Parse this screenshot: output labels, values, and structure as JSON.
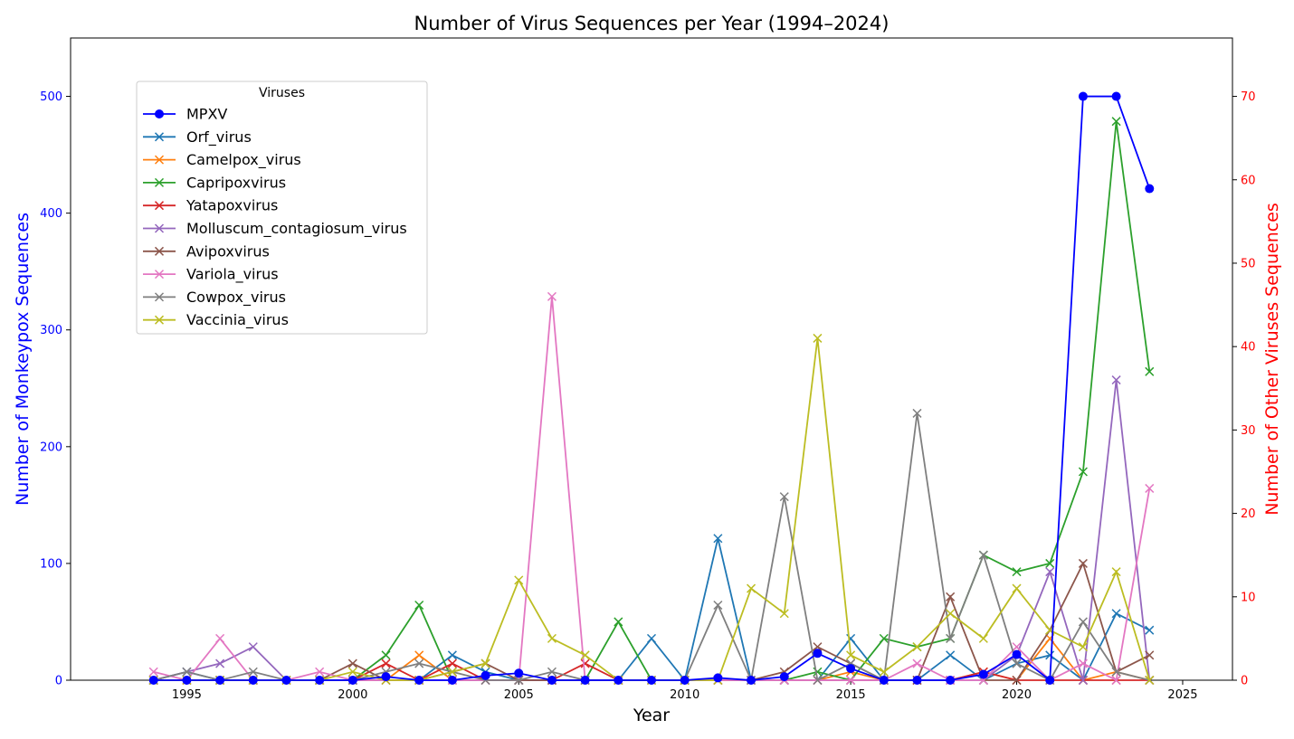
{
  "chart_data": {
    "type": "line",
    "title": "Number of Virus Sequences per Year (1994–2024)",
    "xlabel": "Year",
    "ylabel_left": "Number of Monkeypox Sequences",
    "ylabel_right": "Number of Other Viruses Sequences",
    "xlim": [
      1991.5,
      2026.5
    ],
    "ylim_left": [
      0,
      550
    ],
    "ylim_right": [
      0,
      77
    ],
    "x_ticks": [
      1995,
      2000,
      2005,
      2010,
      2015,
      2020,
      2025
    ],
    "y_ticks_left": [
      0,
      100,
      200,
      300,
      400,
      500
    ],
    "y_ticks_right": [
      0,
      10,
      20,
      30,
      40,
      50,
      60,
      70
    ],
    "grid": false,
    "legend_title": "Viruses",
    "legend_position": "top-left",
    "x": [
      1994,
      1995,
      1996,
      1997,
      1998,
      1999,
      2000,
      2001,
      2002,
      2003,
      2004,
      2005,
      2006,
      2007,
      2008,
      2009,
      2010,
      2011,
      2012,
      2013,
      2014,
      2015,
      2016,
      2017,
      2018,
      2019,
      2020,
      2021,
      2022,
      2023,
      2024
    ],
    "series": [
      {
        "name": "MPXV",
        "axis": "left",
        "color": "#0000ff",
        "marker": "circle",
        "values": [
          0,
          0,
          0,
          0,
          0,
          0,
          0,
          3,
          0,
          0,
          4,
          6,
          0,
          0,
          0,
          0,
          0,
          2,
          0,
          3,
          23,
          10,
          0,
          0,
          0,
          5,
          22,
          0,
          500,
          500,
          421
        ]
      },
      {
        "name": "Orf_virus",
        "axis": "right",
        "color": "#1f77b4",
        "marker": "x",
        "values": [
          0,
          1,
          0,
          0,
          0,
          0,
          0,
          0,
          0,
          3,
          1,
          0,
          0,
          0,
          0,
          5,
          0,
          17,
          0,
          0,
          0,
          5,
          0,
          0,
          3,
          0,
          2,
          3,
          0,
          8,
          6
        ]
      },
      {
        "name": "Camelpox_virus",
        "axis": "right",
        "color": "#ff7f0e",
        "marker": "x",
        "values": [
          0,
          0,
          0,
          0,
          0,
          0,
          0,
          0,
          3,
          0,
          0,
          0,
          0,
          0,
          0,
          0,
          0,
          0,
          0,
          0,
          0,
          1,
          0,
          0,
          0,
          1,
          0,
          5,
          0,
          1,
          0
        ]
      },
      {
        "name": "Capripoxvirus",
        "axis": "right",
        "color": "#2ca02c",
        "marker": "x",
        "values": [
          0,
          0,
          0,
          0,
          0,
          0,
          0,
          3,
          9,
          0,
          0,
          0,
          0,
          0,
          7,
          0,
          0,
          0,
          0,
          0,
          1,
          0,
          5,
          4,
          5,
          15,
          13,
          14,
          25,
          67,
          37
        ]
      },
      {
        "name": "Yatapoxvirus",
        "axis": "right",
        "color": "#d62728",
        "marker": "x",
        "values": [
          0,
          0,
          0,
          0,
          0,
          0,
          0,
          2,
          0,
          2,
          0,
          0,
          0,
          2,
          0,
          0,
          0,
          0,
          0,
          0,
          0,
          0,
          0,
          0,
          0,
          1,
          0,
          0,
          0,
          0,
          0
        ]
      },
      {
        "name": "Molluscum_contagiosum_virus",
        "axis": "right",
        "color": "#9467bd",
        "marker": "x",
        "values": [
          0,
          1,
          2,
          4,
          0,
          0,
          0,
          0,
          0,
          0,
          0,
          0,
          0,
          0,
          0,
          0,
          0,
          0,
          0,
          0,
          0,
          0,
          0,
          0,
          0,
          0,
          3,
          13,
          0,
          36,
          0
        ]
      },
      {
        "name": "Avipoxvirus",
        "axis": "right",
        "color": "#8c564b",
        "marker": "x",
        "values": [
          0,
          0,
          0,
          0,
          0,
          0,
          2,
          0,
          0,
          1,
          2,
          0,
          0,
          0,
          0,
          0,
          0,
          0,
          0,
          1,
          4,
          2,
          0,
          0,
          10,
          0,
          0,
          6,
          14,
          1,
          3
        ]
      },
      {
        "name": "Variola_virus",
        "axis": "right",
        "color": "#e377c2",
        "marker": "x",
        "values": [
          1,
          0,
          5,
          0,
          0,
          1,
          0,
          0,
          0,
          0,
          0,
          0,
          46,
          0,
          0,
          0,
          0,
          0,
          0,
          0,
          0,
          0,
          0,
          2,
          0,
          0,
          4,
          0,
          2,
          0,
          23
        ]
      },
      {
        "name": "Cowpox_virus",
        "axis": "right",
        "color": "#7f7f7f",
        "marker": "x",
        "values": [
          0,
          1,
          0,
          1,
          0,
          0,
          0,
          1,
          2,
          1,
          0,
          0,
          1,
          0,
          0,
          0,
          0,
          9,
          0,
          22,
          0,
          2,
          0,
          32,
          5,
          15,
          2,
          0,
          7,
          1,
          0
        ]
      },
      {
        "name": "Vaccinia_virus",
        "axis": "right",
        "color": "#bcbd22",
        "marker": "x",
        "values": [
          0,
          0,
          0,
          0,
          0,
          0,
          1,
          0,
          0,
          1,
          2,
          12,
          5,
          3,
          0,
          0,
          0,
          0,
          11,
          8,
          41,
          3,
          1,
          4,
          8,
          5,
          11,
          6,
          4,
          13,
          0
        ]
      }
    ]
  }
}
